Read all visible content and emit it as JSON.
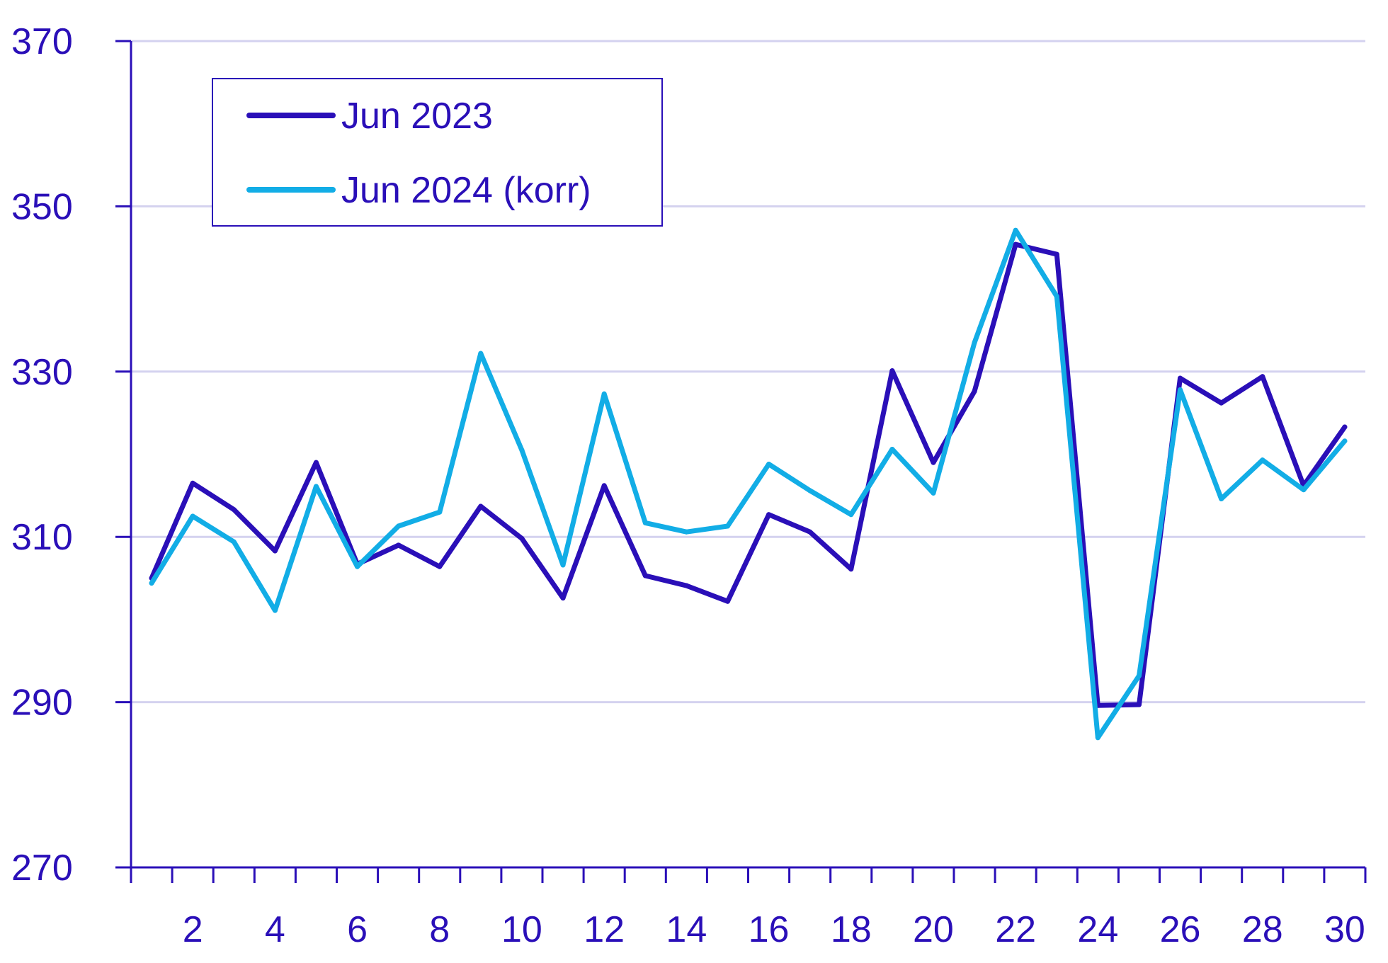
{
  "chart_data": {
    "type": "line",
    "title": "",
    "xlabel": "",
    "ylabel": "",
    "x": [
      1,
      2,
      3,
      4,
      5,
      6,
      7,
      8,
      9,
      10,
      11,
      12,
      13,
      14,
      15,
      16,
      17,
      18,
      19,
      20,
      21,
      22,
      23,
      24,
      25,
      26,
      27,
      28,
      29,
      30
    ],
    "x_tick_labels": [
      "2",
      "4",
      "6",
      "8",
      "10",
      "12",
      "14",
      "16",
      "18",
      "20",
      "22",
      "24",
      "26",
      "28",
      "30"
    ],
    "y_tick_labels": [
      "270",
      "290",
      "310",
      "330",
      "350",
      "370"
    ],
    "xlim": [
      0.5,
      30.5
    ],
    "ylim": [
      270,
      370
    ],
    "grid": true,
    "legend_position": "top-left",
    "series": [
      {
        "name": "Jun 2023",
        "color": "#2a0fb8",
        "values": [
          305,
          316.5,
          313.3,
          308.3,
          319,
          306.7,
          309,
          306.4,
          313.7,
          309.8,
          302.6,
          316.2,
          305.3,
          304.1,
          302.2,
          312.7,
          310.6,
          306.1,
          330.1,
          319,
          327.6,
          345.4,
          344.2,
          289.6,
          289.7,
          329.2,
          326.2,
          329.4,
          316.2,
          323.3
        ]
      },
      {
        "name": "Jun 2024 (korr)",
        "color": "#12ade6",
        "values": [
          304.4,
          312.5,
          309.4,
          301.1,
          316.1,
          306.4,
          311.3,
          313,
          332.2,
          320.5,
          306.6,
          327.3,
          311.7,
          310.6,
          311.3,
          318.8,
          315.6,
          312.7,
          320.6,
          315.3,
          333.5,
          347.1,
          339.1,
          285.7,
          293.2,
          327.8,
          314.6,
          319.3,
          315.7,
          321.6
        ]
      }
    ]
  }
}
